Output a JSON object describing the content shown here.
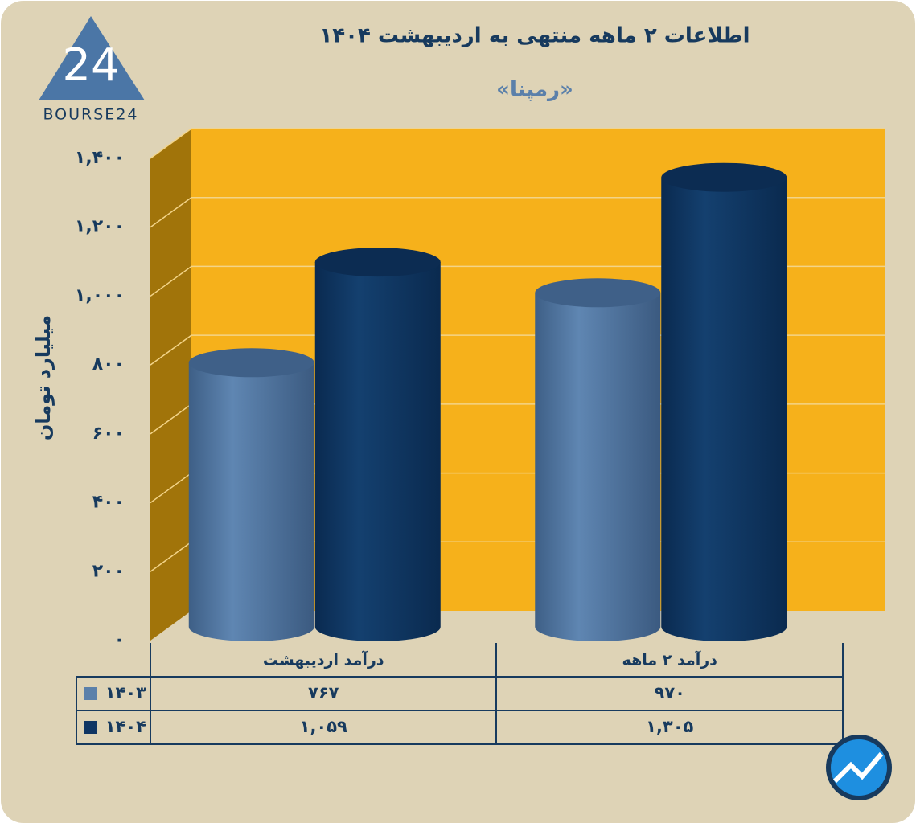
{
  "logo": {
    "text": "BOURSE24"
  },
  "chart_data": {
    "type": "cylinder-bar",
    "title": "اطلاعات ۲ ماهه منتهی به اردیبهشت ۱۴۰۴",
    "subtitle": "«رمپنا»",
    "y_label": "میلیارد تومان",
    "categories": [
      "درآمد اردیبهشت",
      "درآمد ۲ ماهه"
    ],
    "series": [
      {
        "name": "۱۴۰۳",
        "color": "#5b80aa",
        "values": [
          767,
          970
        ],
        "value_labels": [
          "۷۶۷",
          "۹۷۰"
        ]
      },
      {
        "name": "۱۴۰۴",
        "color": "#0f3563",
        "values": [
          1059,
          1305
        ],
        "value_labels": [
          "۱,۰۵۹",
          "۱,۳۰۵"
        ]
      }
    ],
    "ylim": [
      0,
      1400
    ],
    "yticks": [
      {
        "value": 0,
        "label": "۰"
      },
      {
        "value": 200,
        "label": "۲۰۰"
      },
      {
        "value": 400,
        "label": "۴۰۰"
      },
      {
        "value": 600,
        "label": "۶۰۰"
      },
      {
        "value": 800,
        "label": "۸۰۰"
      },
      {
        "value": 1000,
        "label": "۱,۰۰۰"
      },
      {
        "value": 1200,
        "label": "۱,۲۰۰"
      },
      {
        "value": 1400,
        "label": "۱,۴۰۰"
      }
    ],
    "grid": true
  }
}
